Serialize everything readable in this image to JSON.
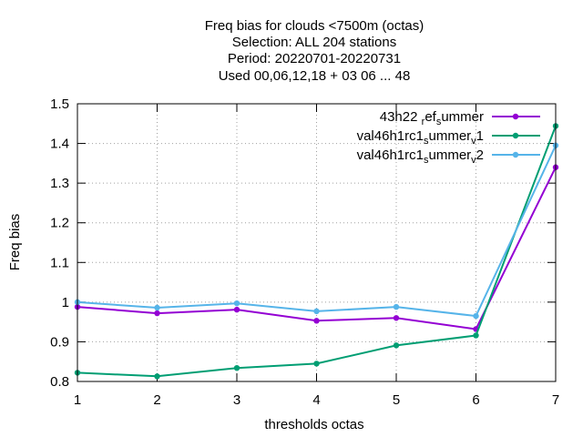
{
  "chart_data": {
    "type": "line",
    "title_lines": [
      "Freq bias  for clouds <7500m (octas)",
      "Selection: ALL    204 stations",
      "Period: 20220701-20220731",
      "Used  00,06,12,18  + 03 06 ... 48"
    ],
    "xlabel": "thresholds octas",
    "ylabel": "Freq bias",
    "x": [
      1,
      2,
      3,
      4,
      5,
      6,
      7
    ],
    "xlim": [
      1,
      7
    ],
    "ylim": [
      0.8,
      1.5
    ],
    "xticks": [
      1,
      2,
      3,
      4,
      5,
      6,
      7
    ],
    "yticks": [
      0.8,
      0.9,
      1,
      1.1,
      1.2,
      1.3,
      1.4,
      1.5
    ],
    "ytick_labels": [
      "0.8",
      "0.9",
      "1",
      "1.1",
      "1.2",
      "1.3",
      "1.4",
      "1.5"
    ],
    "grid": true,
    "legend_position": "top-right",
    "series": [
      {
        "legend_parts": [
          [
            "43h22 ",
            "n"
          ],
          [
            "r",
            "sub"
          ],
          [
            "ef",
            "n"
          ],
          [
            "s",
            "sub"
          ],
          [
            "ummer",
            "n"
          ]
        ],
        "color": "#9400d3",
        "values": [
          0.988,
          0.972,
          0.981,
          0.953,
          0.96,
          0.932,
          1.34
        ]
      },
      {
        "legend_parts": [
          [
            "val46h1rc1",
            "n"
          ],
          [
            "s",
            "sub"
          ],
          [
            "ummer",
            "n"
          ],
          [
            "v",
            "sub"
          ],
          [
            "1",
            "n"
          ]
        ],
        "color": "#009e73",
        "values": [
          0.822,
          0.813,
          0.834,
          0.845,
          0.891,
          0.916,
          1.444
        ]
      },
      {
        "legend_parts": [
          [
            "val46h1rc1",
            "n"
          ],
          [
            "s",
            "sub"
          ],
          [
            "ummer",
            "n"
          ],
          [
            "v",
            "sub"
          ],
          [
            "2",
            "n"
          ]
        ],
        "color": "#56b4e9",
        "values": [
          1.0,
          0.986,
          0.997,
          0.977,
          0.988,
          0.965,
          1.395
        ]
      }
    ]
  }
}
